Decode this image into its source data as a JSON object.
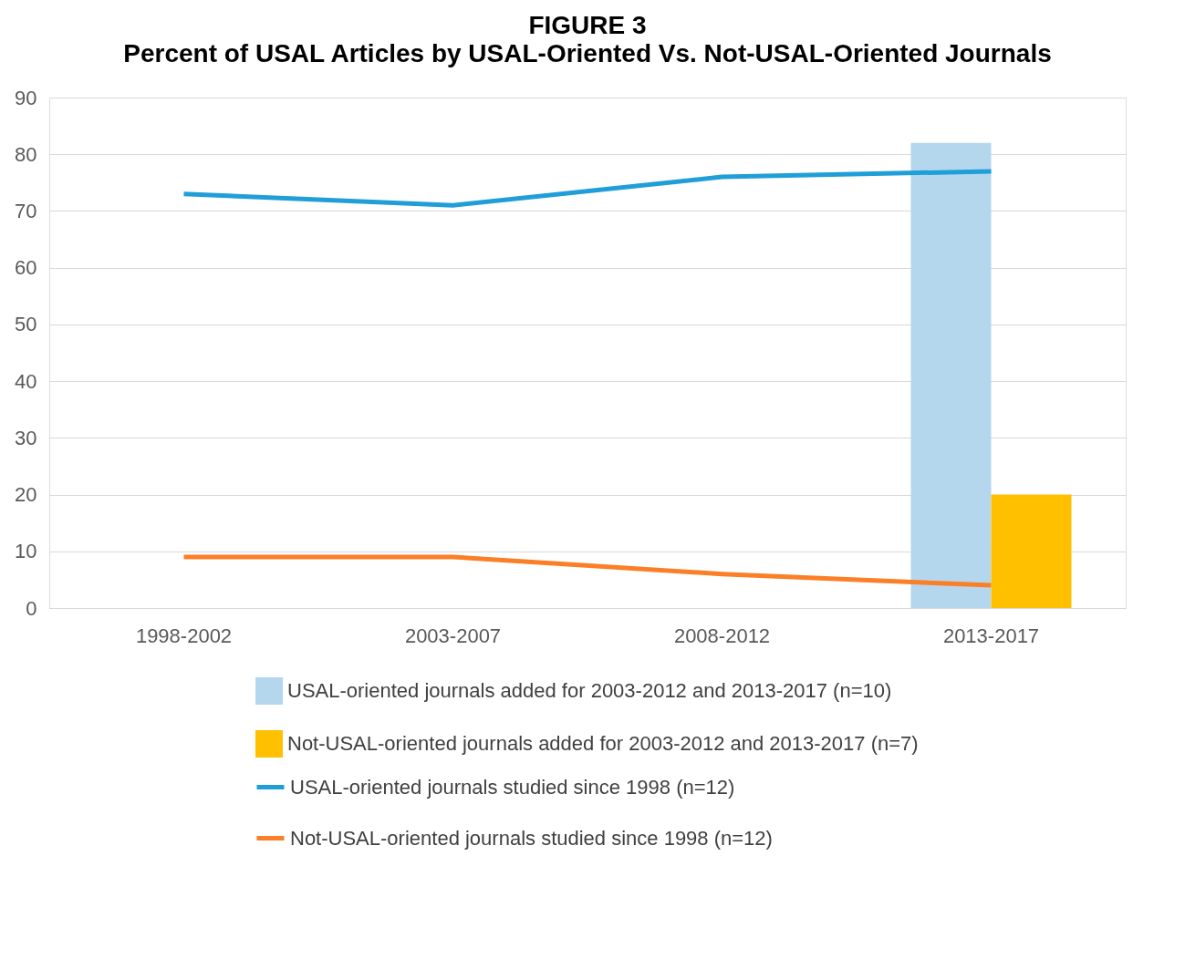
{
  "chart_data": {
    "type": "bar",
    "title": "FIGURE 3",
    "subtitle": "Percent of USAL Articles by USAL-Oriented Vs. Not-USAL-Oriented Journals",
    "categories": [
      "1998-2002",
      "2003-2007",
      "2008-2012",
      "2013-2017"
    ],
    "series": [
      {
        "name": "USAL-oriented journals added for 2003-2012 and 2013-2017 (n=10)",
        "color": "#b4d7ee",
        "values": [
          null,
          null,
          null,
          82
        ]
      },
      {
        "name": "Not-USAL-oriented journals added for 2003-2012 and 2013-2017  (n=7)",
        "color": "#ffc000",
        "values": [
          null,
          null,
          null,
          20
        ]
      },
      {
        "name": "USAL-oriented journals studied since 1998  (n=12)",
        "type": "line",
        "color": "#1f9ed8",
        "values": [
          73,
          71,
          76,
          77
        ]
      },
      {
        "name": "Not-USAL-oriented journals studied since 1998  (n=12)",
        "type": "line",
        "color": "#fb7f26",
        "values": [
          9,
          9,
          6,
          4
        ]
      }
    ],
    "ylim": [
      0,
      90
    ],
    "yticks": [
      0,
      10,
      20,
      30,
      40,
      50,
      60,
      70,
      80,
      90
    ],
    "grid": "y",
    "legend": "bottom"
  }
}
